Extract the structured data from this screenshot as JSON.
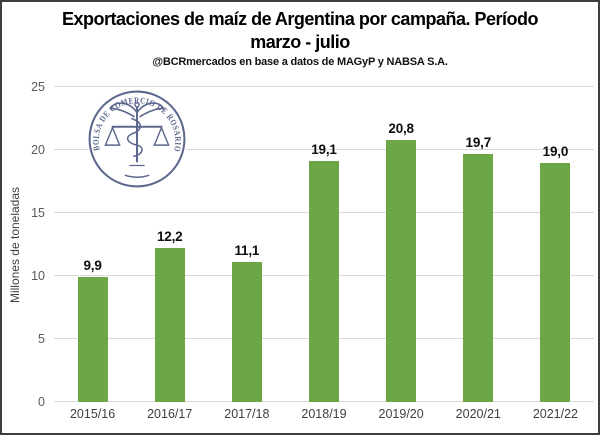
{
  "chart_data": {
    "type": "bar",
    "title": "Exportaciones de maíz de Argentina por campaña. Período marzo - julio",
    "title_lines": [
      "Exportaciones de maíz de Argentina por campaña. Período",
      "marzo - julio"
    ],
    "subtitle": "@BCRmercados en base a datos de MAGyP y NABSA S.A.",
    "ylabel": "Millones de toneladas",
    "xlabel": "",
    "categories": [
      "2015/16",
      "2016/17",
      "2017/18",
      "2018/19",
      "2019/20",
      "2020/21",
      "2021/22"
    ],
    "values": [
      9.9,
      12.2,
      11.1,
      19.1,
      20.8,
      19.7,
      19.0
    ],
    "value_labels": [
      "9,9",
      "12,2",
      "11,1",
      "19,1",
      "20,8",
      "19,7",
      "19,0"
    ],
    "ylim": [
      0,
      25
    ],
    "ytick_step": 5,
    "grid": true,
    "legend": "none",
    "bar_color": "#6CA647",
    "gridline_color": "#d9d9d9",
    "watermark_logo_text": "BOLSA DE COMERCIO DE ROSARIO",
    "logo_color": "#5b678c"
  }
}
